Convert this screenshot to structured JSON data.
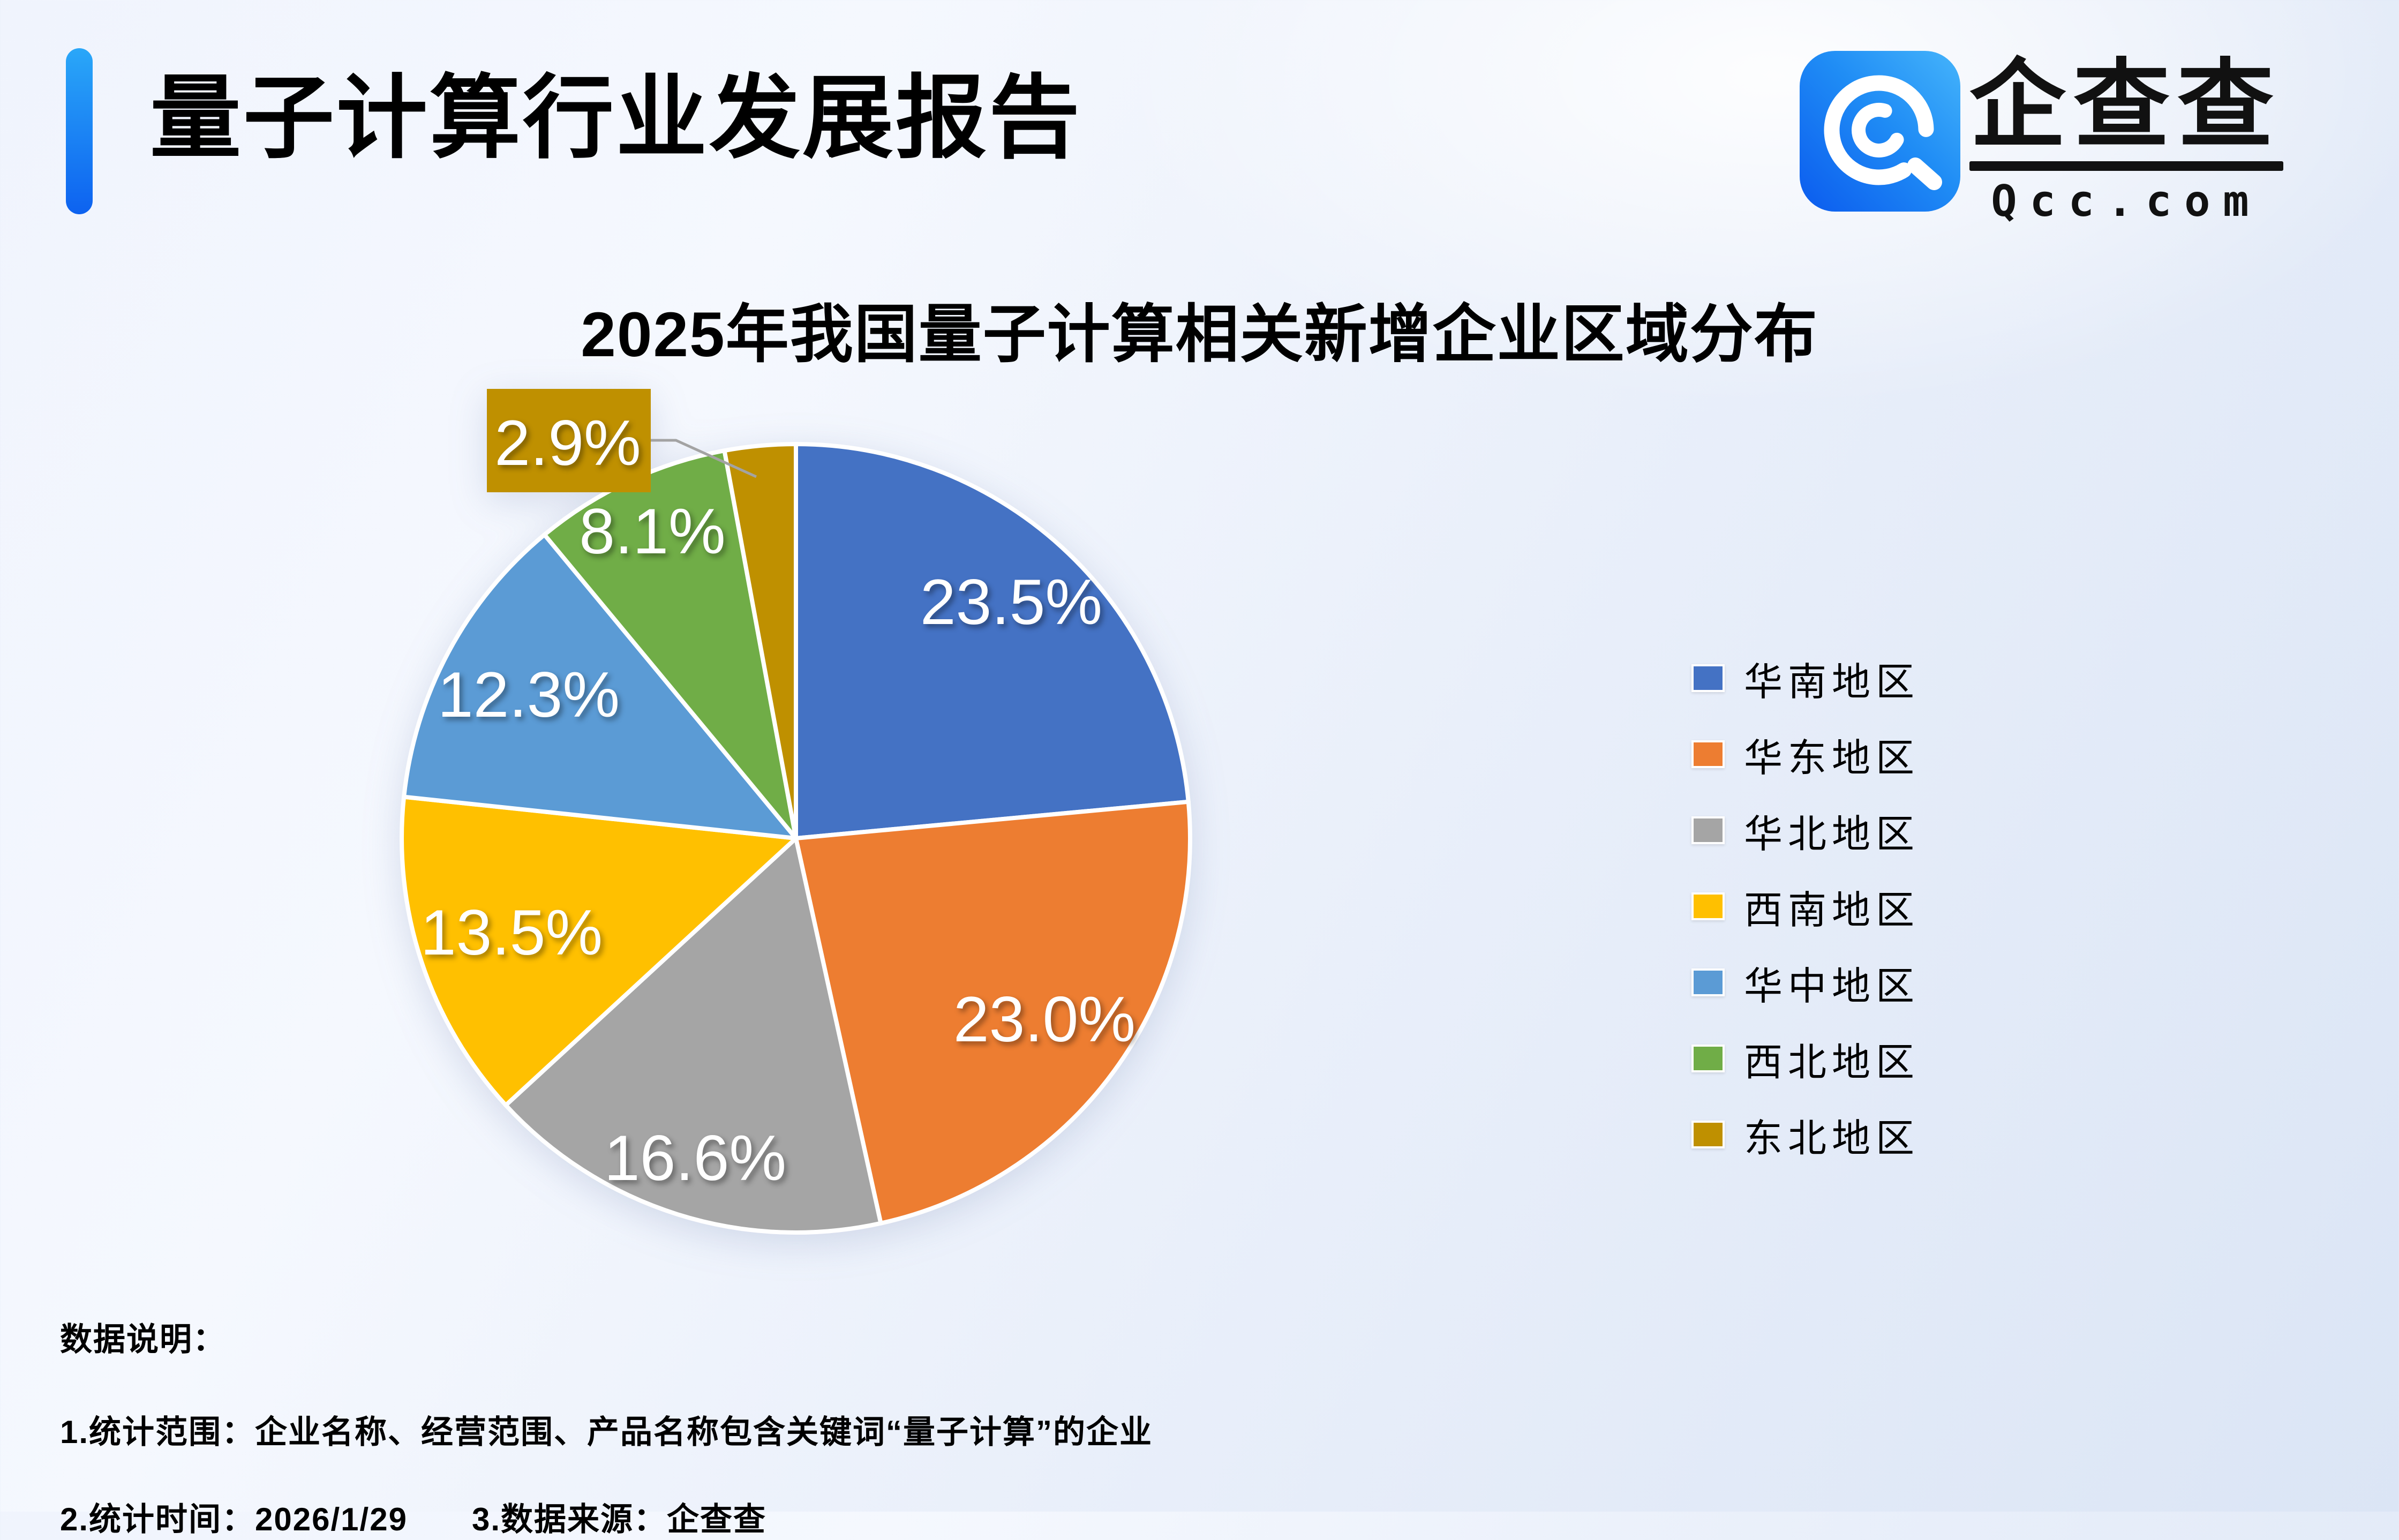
{
  "header": {
    "title": "量子计算行业发展报告"
  },
  "logo": {
    "brand": "企查查",
    "domain": "Qcc.com"
  },
  "chart_data": {
    "type": "pie",
    "title": "2025年我国量子计算相关新增企业区域分布",
    "categories": [
      "华南地区",
      "华东地区",
      "华北地区",
      "西南地区",
      "华中地区",
      "西北地区",
      "东北地区"
    ],
    "values": [
      23.5,
      23.0,
      16.6,
      13.5,
      12.3,
      8.1,
      2.9
    ],
    "labels": [
      "23.5%",
      "23.0%",
      "16.6%",
      "13.5%",
      "12.3%",
      "8.1%",
      "2.9%"
    ],
    "colors": [
      "#4472C4",
      "#ED7D31",
      "#A5A5A5",
      "#FFC000",
      "#5B9BD5",
      "#70AD47",
      "#BF9000"
    ],
    "label_color": "#FFFFFF",
    "leader_line_color": "#A3A3A3",
    "legend_position": "right",
    "start_angle_deg": 0,
    "direction": "clockwise"
  },
  "notes": {
    "heading": "数据说明：",
    "line1": "1.统计范围：企业名称、经营范围、产品名称包含关键词“量子计算”的企业",
    "line2a": "2.统计时间：2026/1/29",
    "line2b": "3.数据来源：企查查"
  }
}
